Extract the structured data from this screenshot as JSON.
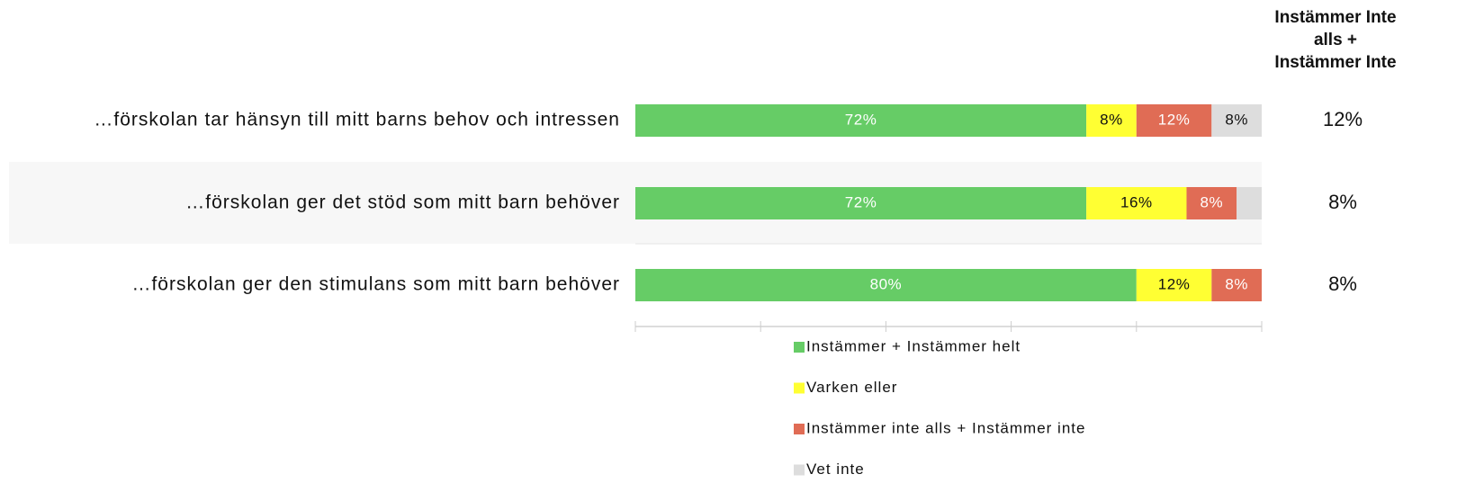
{
  "chart_data": {
    "type": "stacked-bar-horizontal",
    "categories": [
      "…förskolan tar hänsyn till mitt barns behov och intressen",
      "…förskolan ger det stöd som mitt barn behöver",
      "…förskolan ger den stimulans som mitt barn behöver"
    ],
    "series": [
      {
        "name": "Instämmer + Instämmer helt",
        "color": "#66cc66",
        "values": [
          72,
          72,
          80
        ],
        "value_labels": [
          "72%",
          "72%",
          "80%"
        ]
      },
      {
        "name": "Varken eller",
        "color": "#ffff33",
        "values": [
          8,
          16,
          12
        ],
        "value_labels": [
          "8%",
          "16%",
          "12%"
        ]
      },
      {
        "name": "Instämmer inte alls + Instämmer inte",
        "color": "#e06c55",
        "values": [
          12,
          8,
          8
        ],
        "value_labels": [
          "12%",
          "8%",
          "8%"
        ]
      },
      {
        "name": "Vet inte",
        "color": "#dddddd",
        "values": [
          8,
          4,
          0
        ],
        "value_labels": [
          "8%",
          null,
          null
        ]
      }
    ],
    "xlim": [
      0,
      100
    ],
    "xticks": [
      0,
      20,
      40,
      60,
      80,
      100
    ],
    "summary": {
      "title": "Instämmer Inte alls + Instämmer Inte",
      "values": [
        12,
        8,
        8
      ],
      "value_labels": [
        "12%",
        "8%",
        "8%"
      ]
    }
  }
}
